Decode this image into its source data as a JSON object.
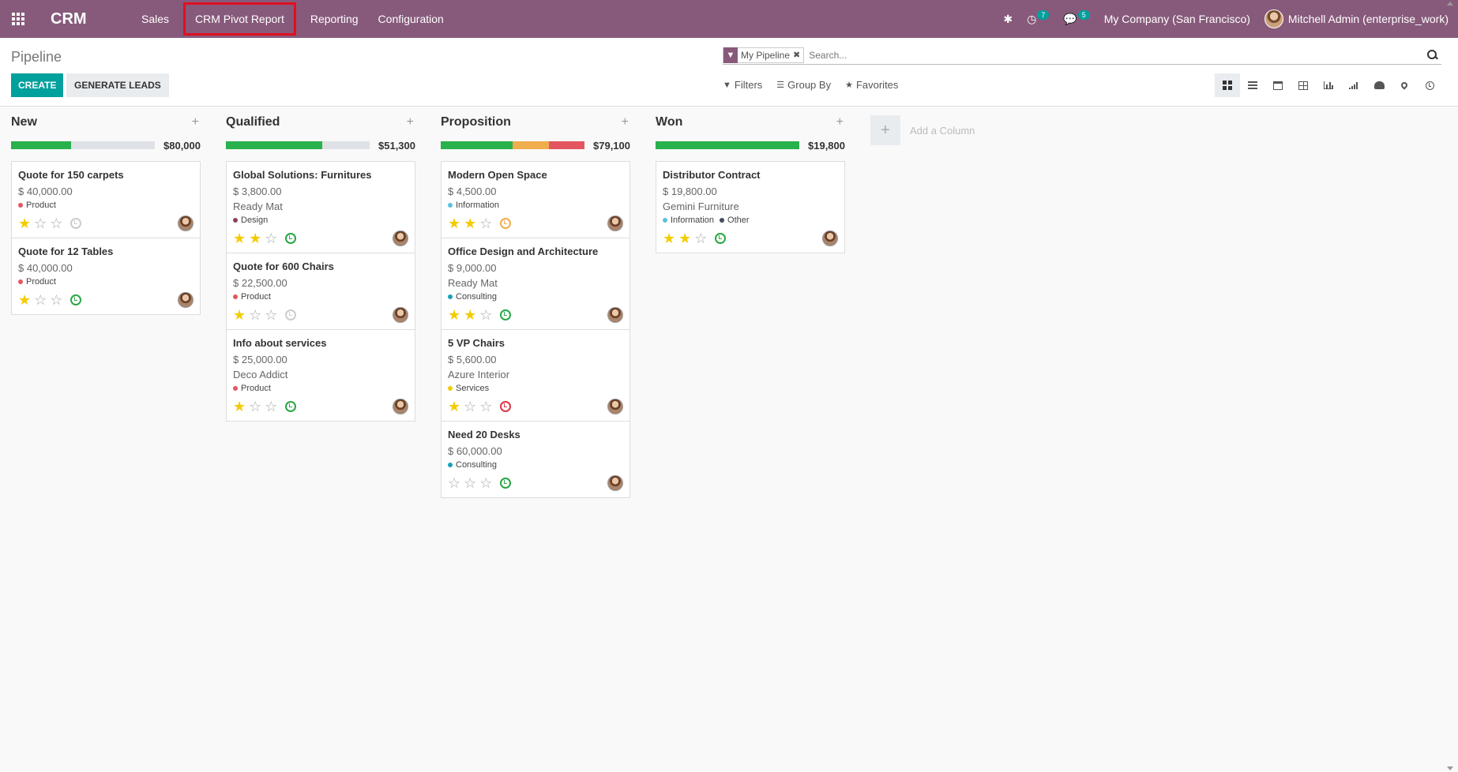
{
  "topbar": {
    "brand": "CRM",
    "menu": [
      "Sales",
      "CRM Pivot Report",
      "Reporting",
      "Configuration"
    ],
    "activity_count": "7",
    "message_count": "5",
    "company": "My Company (San Francisco)",
    "user": "Mitchell Admin (enterprise_work)"
  },
  "control": {
    "title": "Pipeline",
    "create_label": "CREATE",
    "generate_label": "GENERATE LEADS",
    "facet_label": "My Pipeline",
    "search_placeholder": "Search...",
    "filters_label": "Filters",
    "groupby_label": "Group By",
    "favorites_label": "Favorites"
  },
  "colors": {
    "brand": "#875a7b",
    "accent": "#00a09d",
    "progress_green": "#28b14c",
    "progress_orange": "#f0ad4e",
    "progress_red": "#e4565f",
    "star": "#f3cc00"
  },
  "add_column_label": "Add a Column",
  "columns": [
    {
      "title": "New",
      "total": "$80,000",
      "progress": {
        "won": 0.42,
        "warn": 0,
        "lost": 0
      },
      "cards": [
        {
          "title": "Quote for 150 carpets",
          "amount": "$ 40,000.00",
          "partner": "",
          "tags": [
            {
              "label": "Product",
              "color": "#e4565f"
            }
          ],
          "stars": 1,
          "activity": "none"
        },
        {
          "title": "Quote for 12 Tables",
          "amount": "$ 40,000.00",
          "partner": "",
          "tags": [
            {
              "label": "Product",
              "color": "#e4565f"
            }
          ],
          "stars": 1,
          "activity": "planned"
        }
      ]
    },
    {
      "title": "Qualified",
      "total": "$51,300",
      "progress": {
        "won": 0.67,
        "warn": 0,
        "lost": 0
      },
      "cards": [
        {
          "title": "Global Solutions: Furnitures",
          "amount": "$ 3,800.00",
          "partner": "Ready Mat",
          "tags": [
            {
              "label": "Design",
              "color": "#8e3f5e"
            }
          ],
          "stars": 2,
          "activity": "planned"
        },
        {
          "title": "Quote for 600 Chairs",
          "amount": "$ 22,500.00",
          "partner": "",
          "tags": [
            {
              "label": "Product",
              "color": "#e4565f"
            }
          ],
          "stars": 1,
          "activity": "none"
        },
        {
          "title": "Info about services",
          "amount": "$ 25,000.00",
          "partner": "Deco Addict",
          "tags": [
            {
              "label": "Product",
              "color": "#e4565f"
            }
          ],
          "stars": 1,
          "activity": "planned"
        }
      ]
    },
    {
      "title": "Proposition",
      "total": "$79,100",
      "progress": {
        "won": 0.5,
        "warn": 0.25,
        "lost": 0.25
      },
      "cards": [
        {
          "title": "Modern Open Space",
          "amount": "$ 4,500.00",
          "partner": "",
          "tags": [
            {
              "label": "Information",
              "color": "#5bc0de"
            }
          ],
          "stars": 2,
          "activity": "today"
        },
        {
          "title": "Office Design and Architecture",
          "amount": "$ 9,000.00",
          "partner": "Ready Mat",
          "tags": [
            {
              "label": "Consulting",
              "color": "#17a2b8"
            }
          ],
          "stars": 2,
          "activity": "planned"
        },
        {
          "title": "5 VP Chairs",
          "amount": "$ 5,600.00",
          "partner": "Azure Interior",
          "tags": [
            {
              "label": "Services",
              "color": "#f3cc00"
            }
          ],
          "stars": 1,
          "activity": "overdue"
        },
        {
          "title": "Need 20 Desks",
          "amount": "$ 60,000.00",
          "partner": "",
          "tags": [
            {
              "label": "Consulting",
              "color": "#17a2b8"
            }
          ],
          "stars": 0,
          "activity": "planned"
        }
      ]
    },
    {
      "title": "Won",
      "total": "$19,800",
      "progress": {
        "won": 1,
        "warn": 0,
        "lost": 0
      },
      "cards": [
        {
          "title": "Distributor Contract",
          "amount": "$ 19,800.00",
          "partner": "Gemini Furniture",
          "tags": [
            {
              "label": "Information",
              "color": "#5bc0de"
            },
            {
              "label": "Other",
              "color": "#444b5a"
            }
          ],
          "stars": 2,
          "activity": "planned"
        }
      ]
    }
  ]
}
